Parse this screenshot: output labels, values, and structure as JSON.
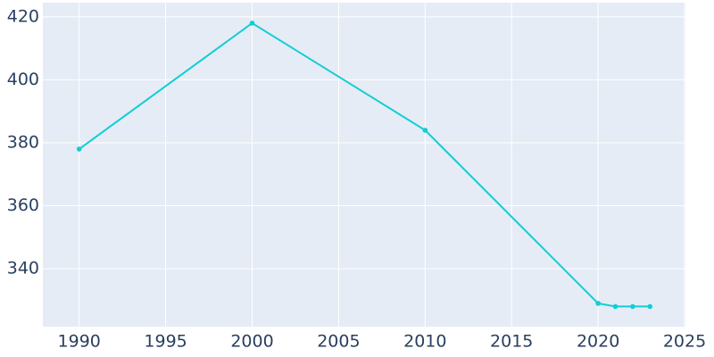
{
  "chart_data": {
    "type": "line",
    "x": [
      1990,
      2000,
      2010,
      2020,
      2021,
      2022,
      2023
    ],
    "series": [
      {
        "color": "#12cdd4",
        "values": [
          378,
          418,
          384,
          329,
          328,
          328,
          328
        ]
      }
    ],
    "xlim": [
      1987.9,
      2025.05
    ],
    "xticks": [
      1990,
      1995,
      2000,
      2005,
      2010,
      2015,
      2020,
      2025
    ],
    "ylim": [
      321.6,
      424.5
    ],
    "yticks": [
      340,
      360,
      380,
      400,
      420
    ],
    "grid": true
  }
}
